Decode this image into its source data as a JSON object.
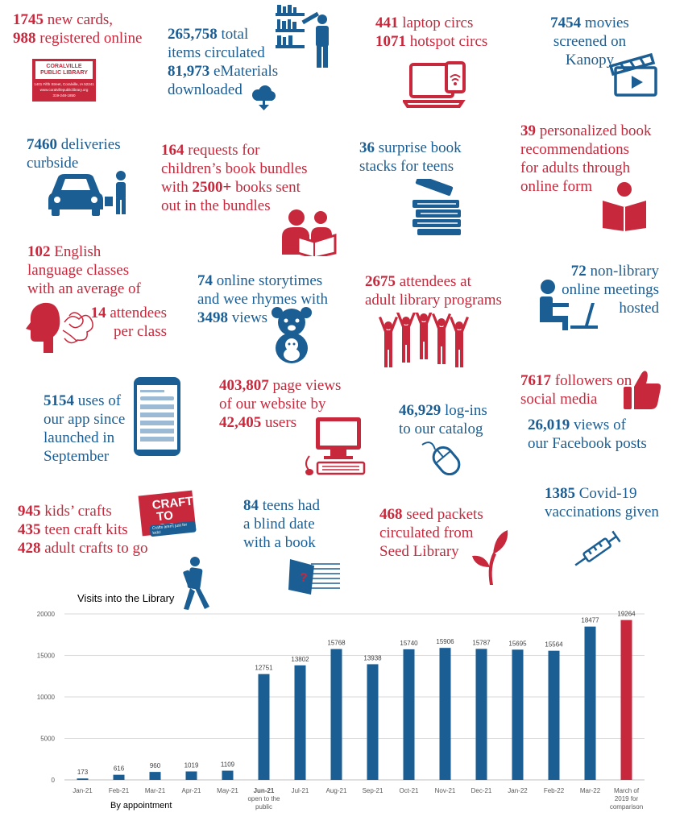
{
  "stats": {
    "cards": {
      "n1": "1745",
      "t1": " new cards,",
      "n2": "988",
      "t2": " registered online"
    },
    "logo": {
      "line1": "CORALVILLE",
      "line2": "PUBLIC LIBRARY",
      "addr": "1401 Fifth Street, Coralville, IA 52241",
      "web": "www.coralvillepubliclibrary.org",
      "phone": "319-248-1850"
    },
    "items": {
      "n1": "265,758",
      "t1": " total",
      "l2": "items circulated",
      "n2": "81,973",
      "t2": " eMaterials",
      "l4": "downloaded"
    },
    "laptop": {
      "n1": "441",
      "t1": " laptop circs",
      "n2": "1071",
      "t2": " hotspot circs"
    },
    "movies": {
      "n1": "7454",
      "t1": " movies",
      "l2": "screened on",
      "l3": "Kanopy"
    },
    "deliveries": {
      "n1": "7460",
      "t1": " deliveries",
      "l2": "curbside"
    },
    "bundles": {
      "n1": "164",
      "t1": " requests for",
      "l2": "children’s book bundles",
      "t3a": "with ",
      "n2": "2500+",
      "t3b": " books sent",
      "l4": "out in the bundles"
    },
    "teens_stacks": {
      "n1": "36",
      "t1": " surprise book",
      "l2": "stacks for teens"
    },
    "recs": {
      "n1": "39",
      "t1": " personalized book",
      "l2": "recommendations",
      "l3": "for adults through",
      "l4": "online form"
    },
    "english": {
      "n1": "102",
      "t1": " English",
      "l2": "language classes",
      "l3": "with an average of",
      "n2": "14",
      "t2": " attendees",
      "l5": "per class"
    },
    "storytimes": {
      "n1": "74",
      "t1": " online storytimes",
      "l2": "and wee rhymes with",
      "n2": "3498",
      "t2": " views"
    },
    "adult_programs": {
      "n1": "2675",
      "t1": " attendees at",
      "l2": "adult library programs"
    },
    "meetings": {
      "n1": "72",
      "t1": " non-library",
      "l2": "online meetings",
      "l3": "hosted"
    },
    "app": {
      "n1": "5154",
      "t1": " uses of",
      "l2": "our app since",
      "l3": "launched in",
      "l4": "September"
    },
    "website": {
      "n1": "403,807",
      "t1": " page views",
      "l2": "of our website by",
      "n2": "42,405",
      "t2": " users"
    },
    "catalog": {
      "n1": "46,929",
      "t1": " log-ins",
      "l2": "to our catalog"
    },
    "social": {
      "n1": "7617",
      "t1": " followers on",
      "l2": "social media",
      "n2": "26,019",
      "t2": " views of",
      "l4": "our Facebook posts"
    },
    "crafts": {
      "n1": "945",
      "t1": " kids’ crafts",
      "n2": "435",
      "t2": " teen craft kits",
      "n3": "428",
      "t3": " adult crafts to go"
    },
    "craft_logo": {
      "line1": "CRAFT",
      "line2": "TO GO",
      "tag": "Crafts aren't just for kids!"
    },
    "blind_date": {
      "n1": "84",
      "t1": " teens had",
      "l2": "a blind date",
      "l3": "with a book"
    },
    "seeds": {
      "n1": "468",
      "t1": " seed packets",
      "l2": "circulated from",
      "l3": "Seed Library"
    },
    "covid": {
      "n1": "1385",
      "t1": " Covid-19",
      "l2": "vaccinations given"
    }
  },
  "colors": {
    "red": "#c8283c",
    "blue": "#1b5e93",
    "bar": "#1b5e93",
    "highlight": "#c8283c"
  },
  "icons": [
    "librarian-shelf-icon",
    "cloud-download-icon",
    "laptop-hotspot-icon",
    "movie-clapper-icon",
    "car-delivery-icon",
    "parent-child-reading-icon",
    "book-stack-icon",
    "person-reading-icon",
    "speaking-head-icon",
    "teddy-bear-icon",
    "raised-hands-crowd-icon",
    "person-laptop-icon",
    "smartphone-app-icon",
    "desktop-computer-icon",
    "mouse-icon",
    "thumbs-up-icon",
    "walking-person-icon",
    "wrapped-book-icon",
    "seedling-icon",
    "syringe-icon"
  ],
  "chart_data": {
    "type": "bar",
    "title": "Visits into the Library",
    "categories": [
      "Jan-21",
      "Feb-21",
      "Mar-21",
      "Apr-21",
      "May-21",
      "Jun-21",
      "Jul-21",
      "Aug-21",
      "Sep-21",
      "Oct-21",
      "Nov-21",
      "Dec-21",
      "Jan-22",
      "Feb-22",
      "Mar-22",
      "March of 2019 for comparison"
    ],
    "category_sublabels": {
      "Jun-21": "open to the public"
    },
    "values": [
      173,
      616,
      960,
      1019,
      1109,
      12751,
      13802,
      15768,
      13938,
      15740,
      15906,
      15787,
      15695,
      15564,
      18477,
      19264
    ],
    "highlight_index": 15,
    "ylim": [
      0,
      20000
    ],
    "yticks": [
      0,
      5000,
      10000,
      15000,
      20000
    ],
    "grid": true,
    "annotation": "By appointment",
    "xlabel": "",
    "ylabel": ""
  }
}
